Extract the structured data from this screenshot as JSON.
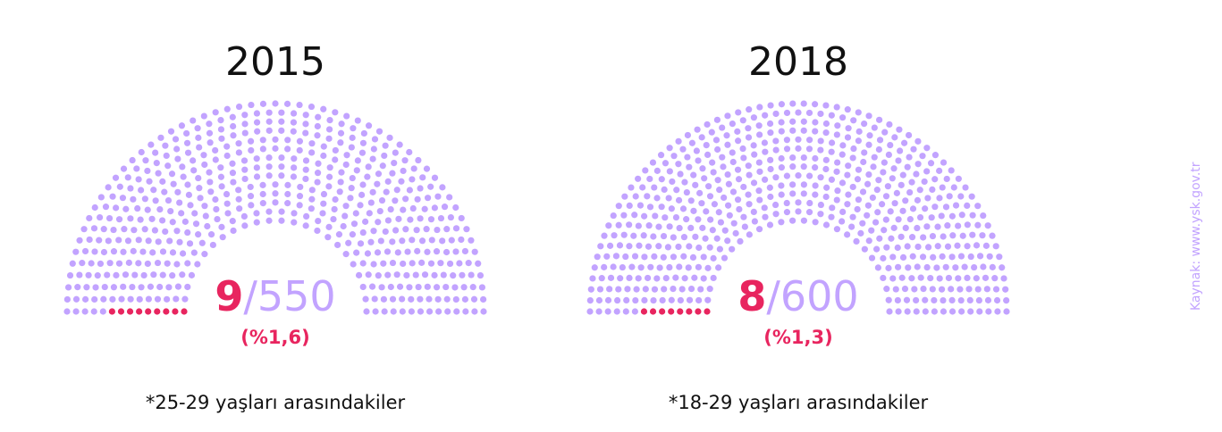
{
  "chart_data": [
    {
      "type": "parliament",
      "title": "2015",
      "highlighted": 9,
      "total": 550,
      "percent_label": "(%1,6)",
      "note": "*25-29 yaşları arasındakiler"
    },
    {
      "type": "parliament",
      "title": "2018",
      "highlighted": 8,
      "total": 600,
      "percent_label": "(%1,3)",
      "note": "*18-29 yaşları arasındakiler"
    }
  ],
  "separator": "/",
  "source": "Kaynak: www.ysk.gov.tr",
  "colors": {
    "seat": "#c2a3ff",
    "highlight": "#e8255f",
    "text": "#111111"
  }
}
